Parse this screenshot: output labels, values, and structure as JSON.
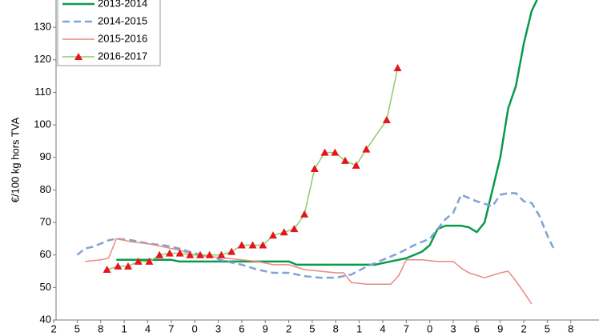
{
  "chart_data": {
    "type": "line",
    "y_label": "€/100 kg hors TVA",
    "xlim": [
      2.3,
      71.6
    ],
    "xticks": [
      {
        "value": 2,
        "label": "2"
      },
      {
        "value": 5,
        "label": "5"
      },
      {
        "value": 8,
        "label": "8"
      },
      {
        "value": 11,
        "label": "1"
      },
      {
        "value": 14,
        "label": "4"
      },
      {
        "value": 17,
        "label": "7"
      },
      {
        "value": 20,
        "label": "0"
      },
      {
        "value": 23,
        "label": "3"
      },
      {
        "value": 26,
        "label": "6"
      },
      {
        "value": 29,
        "label": "9"
      },
      {
        "value": 32,
        "label": "2"
      },
      {
        "value": 35,
        "label": "5"
      },
      {
        "value": 38,
        "label": "8"
      },
      {
        "value": 41,
        "label": "1"
      },
      {
        "value": 44,
        "label": "4"
      },
      {
        "value": 47,
        "label": "7"
      },
      {
        "value": 50,
        "label": "0"
      },
      {
        "value": 53,
        "label": "3"
      },
      {
        "value": 56,
        "label": "6"
      },
      {
        "value": 59,
        "label": "9"
      },
      {
        "value": 62,
        "label": "2"
      },
      {
        "value": 65,
        "label": "5"
      },
      {
        "value": 68,
        "label": "8"
      }
    ],
    "ylim": [
      40,
      138.4
    ],
    "yticks": [
      40,
      50,
      60,
      70,
      80,
      90,
      100,
      110,
      120,
      130
    ],
    "series": [
      {
        "name": "2013-2014",
        "color": "#0a9a4a",
        "width": 2.5,
        "dash": false,
        "x": [
          10,
          14,
          17,
          18,
          25,
          32,
          33,
          40,
          43,
          45,
          47,
          49,
          50,
          51,
          52,
          54,
          55,
          56,
          57,
          58,
          59,
          60,
          61,
          62,
          63,
          64
        ],
        "values": [
          58.5,
          58.5,
          58.5,
          58,
          58,
          58,
          57,
          57,
          57,
          58,
          59,
          61,
          63,
          68,
          69,
          69,
          68.5,
          67,
          70,
          80,
          90,
          105,
          112,
          125,
          135,
          140
        ]
      },
      {
        "name": "2014-2015",
        "color": "#7ea4d6",
        "width": 2.5,
        "dash": true,
        "x": [
          5,
          6,
          7,
          9,
          10,
          12,
          14,
          16,
          18,
          20,
          22,
          24,
          26,
          28,
          30,
          32,
          34,
          36,
          38,
          40,
          42,
          44,
          46,
          48,
          50,
          52,
          53,
          54,
          55,
          56,
          58,
          59,
          60,
          61,
          62,
          63,
          64,
          65,
          66
        ],
        "values": [
          60,
          62,
          62.5,
          64.5,
          65,
          64.5,
          63.5,
          63,
          62,
          60.5,
          59.5,
          58,
          57,
          55.5,
          54.5,
          54.5,
          53.5,
          53,
          53,
          54,
          56.5,
          58.5,
          60.5,
          63,
          65,
          71,
          73,
          78.5,
          77.5,
          76.5,
          75,
          78.5,
          79,
          79,
          76.5,
          76,
          72,
          66,
          61
        ]
      },
      {
        "name": "2015-2016",
        "color": "#e88a80",
        "width": 1.5,
        "dash": false,
        "x": [
          6,
          8,
          9,
          10,
          12,
          14,
          16,
          18,
          20,
          22,
          24,
          26,
          28,
          30,
          32,
          34,
          36,
          38,
          39,
          40,
          42,
          44,
          45,
          46,
          47,
          49,
          51,
          53,
          54,
          55,
          57,
          59,
          60,
          61,
          62,
          63
        ],
        "values": [
          58,
          58.5,
          59,
          65,
          64,
          63.5,
          62.5,
          61.5,
          60,
          59.5,
          59,
          58.5,
          58,
          57,
          57,
          55.5,
          55,
          54.5,
          54.5,
          51.5,
          51,
          51,
          51,
          53.5,
          58.5,
          58.5,
          58,
          58,
          56,
          54.5,
          53,
          54.5,
          55,
          52,
          48.5,
          45
        ]
      },
      {
        "name": "2016-2017",
        "color": "#8fcb6c",
        "width": 1.5,
        "dash": false,
        "marker_color": "#e8141c",
        "x": [
          8.8,
          10.2,
          11.5,
          12.8,
          14.2,
          15.5,
          16.8,
          18.1,
          19.4,
          20.7,
          21.9,
          23.4,
          24.7,
          26,
          27.4,
          28.7,
          30,
          31.4,
          32.7,
          34,
          35.3,
          36.6,
          37.9,
          39.2,
          40.6,
          41.9,
          44.5,
          45.9
        ],
        "values": [
          55.5,
          56.5,
          56.5,
          58,
          58,
          60,
          60.5,
          60.5,
          60,
          60,
          60,
          60,
          61,
          63,
          63,
          63,
          66,
          67,
          68,
          72.5,
          86.5,
          91.5,
          91.5,
          89,
          87.5,
          92.5,
          101.5,
          117.5
        ]
      }
    ]
  }
}
